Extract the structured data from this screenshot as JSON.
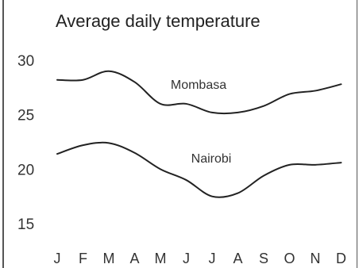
{
  "chart_data": {
    "type": "line",
    "title": "Average daily temperature",
    "xlabel": "",
    "ylabel": "",
    "categories": [
      "J",
      "F",
      "M",
      "A",
      "M",
      "J",
      "J",
      "A",
      "S",
      "O",
      "N",
      "D"
    ],
    "y_ticks": [
      "30",
      "25",
      "20",
      "15"
    ],
    "ylim": [
      15,
      30
    ],
    "grid": false,
    "series": [
      {
        "name": "Mombasa",
        "values": [
          28.2,
          28.2,
          29.0,
          28.0,
          26.0,
          26.0,
          25.2,
          25.2,
          25.8,
          26.9,
          27.2,
          27.8
        ]
      },
      {
        "name": "Nairobi",
        "values": [
          21.4,
          22.2,
          22.4,
          21.5,
          20.0,
          19.0,
          17.5,
          17.8,
          19.4,
          20.4,
          20.4,
          20.6
        ]
      }
    ]
  }
}
